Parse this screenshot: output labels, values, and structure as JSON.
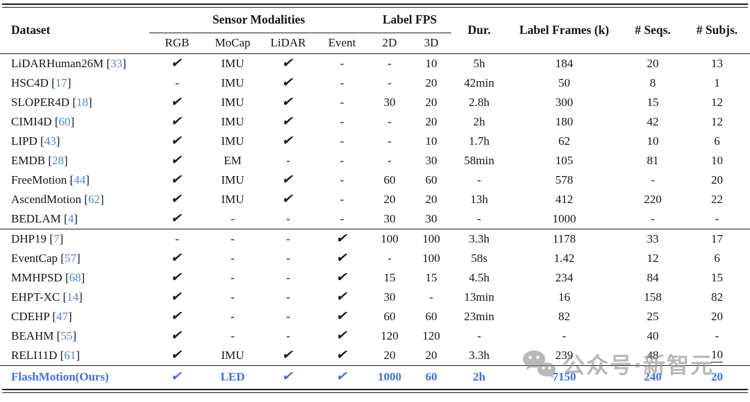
{
  "colors": {
    "citation_blue": "#4c86c8",
    "ours_blue": "#3f6fe3",
    "text_black": "#141414",
    "rule_black": "#1a1a1a",
    "watermark_gray": "#8f8f8f"
  },
  "citation_brackets": [
    "[",
    "]"
  ],
  "table": {
    "header": {
      "dataset": "Dataset",
      "sensor_modalities": "Sensor Modalities",
      "sensor_cols": [
        "RGB",
        "MoCap",
        "LiDAR",
        "Event"
      ],
      "label_fps": "Label FPS",
      "fps_cols": [
        "2D",
        "3D"
      ],
      "dur": "Dur.",
      "label_frames": "Label Frames (k)",
      "seqs": "# Seqs.",
      "subjs": "# Subjs."
    },
    "groups": [
      {
        "rows": [
          {
            "dataset": "LiDARHuman26M",
            "cite": "33",
            "cells": [
              "✔",
              "IMU",
              "✔",
              "-",
              "-",
              "10",
              "5h",
              "184",
              "20",
              "13"
            ]
          },
          {
            "dataset": "HSC4D",
            "cite": "17",
            "cells": [
              "-",
              "IMU",
              "✔",
              "-",
              "-",
              "20",
              "42min",
              "50",
              "8",
              "1"
            ]
          },
          {
            "dataset": "SLOPER4D",
            "cite": "18",
            "cells": [
              "✔",
              "IMU",
              "✔",
              "-",
              "30",
              "20",
              "2.8h",
              "300",
              "15",
              "12"
            ]
          },
          {
            "dataset": "CIMI4D",
            "cite": "60",
            "cells": [
              "✔",
              "IMU",
              "✔",
              "-",
              "-",
              "20",
              "2h",
              "180",
              "42",
              "12"
            ]
          },
          {
            "dataset": "LIPD",
            "cite": "43",
            "cells": [
              "✔",
              "IMU",
              "✔",
              "-",
              "-",
              "10",
              "1.7h",
              "62",
              "10",
              "6"
            ]
          },
          {
            "dataset": "EMDB",
            "cite": "28",
            "cells": [
              "✔",
              "EM",
              "-",
              "-",
              "-",
              "30",
              "58min",
              "105",
              "81",
              "10"
            ]
          },
          {
            "dataset": "FreeMotion",
            "cite": "44",
            "cells": [
              "✔",
              "IMU",
              "✔",
              "-",
              "60",
              "60",
              "-",
              "578",
              "-",
              "20"
            ]
          },
          {
            "dataset": "AscendMotion",
            "cite": "62",
            "cells": [
              "✔",
              "IMU",
              "✔",
              "-",
              "20",
              "20",
              "13h",
              "412",
              "220",
              "22"
            ]
          },
          {
            "dataset": "BEDLAM",
            "cite": "4",
            "cells": [
              "✔",
              "-",
              "-",
              "-",
              "30",
              "30",
              "-",
              "1000",
              "-",
              "-"
            ]
          }
        ]
      },
      {
        "rows": [
          {
            "dataset": "DHP19",
            "cite": "7",
            "cells": [
              "-",
              "-",
              "-",
              "✔",
              "100",
              "100",
              "3.3h",
              "1178",
              "33",
              "17"
            ]
          },
          {
            "dataset": "EventCap",
            "cite": "57",
            "cells": [
              "✔",
              "-",
              "-",
              "✔",
              "-",
              "100",
              "58s",
              "1.42",
              "12",
              "6"
            ]
          },
          {
            "dataset": "MMHPSD",
            "cite": "68",
            "cells": [
              "✔",
              "-",
              "-",
              "✔",
              "15",
              "15",
              "4.5h",
              "234",
              "84",
              "15"
            ]
          },
          {
            "dataset": "EHPT-XC",
            "cite": "14",
            "cells": [
              "✔",
              "-",
              "-",
              "✔",
              "30",
              "-",
              "13min",
              "16",
              "158",
              "82"
            ]
          },
          {
            "dataset": "CDEHP",
            "cite": "47",
            "cells": [
              "✔",
              "-",
              "-",
              "✔",
              "60",
              "60",
              "23min",
              "82",
              "25",
              "20"
            ]
          },
          {
            "dataset": "BEAHM",
            "cite": "55",
            "cells": [
              "✔",
              "-",
              "-",
              "✔",
              "120",
              "120",
              "-",
              "-",
              "40",
              "-"
            ]
          },
          {
            "dataset": "RELI11D",
            "cite": "61",
            "cells": [
              "✔",
              "IMU",
              "✔",
              "✔",
              "20",
              "20",
              "3.3h",
              "239",
              "48",
              "10"
            ],
            "underline": [
              9
            ]
          }
        ]
      }
    ],
    "ours": {
      "dataset": "FlashMotion(Ours)",
      "cells": [
        "✔",
        "LED",
        "✔",
        "✔",
        "1000",
        "60",
        "2h",
        "7150",
        "240",
        "20"
      ]
    }
  },
  "watermark": {
    "icon": "wechat-icon",
    "text": "公众号·新智元"
  }
}
